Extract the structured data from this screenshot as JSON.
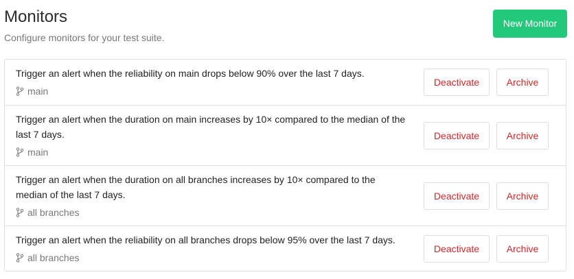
{
  "header": {
    "title": "Monitors",
    "subtitle": "Configure monitors for your test suite.",
    "new_monitor_label": "New Monitor"
  },
  "monitors": [
    {
      "text": "Trigger an alert when the reliability on main drops below 90% over the last 7 days.",
      "branch": "main",
      "deactivate_label": "Deactivate",
      "archive_label": "Archive"
    },
    {
      "text": "Trigger an alert when the duration on main increases by 10× compared to the median of the last 7 days.",
      "branch": "main",
      "deactivate_label": "Deactivate",
      "archive_label": "Archive"
    },
    {
      "text": "Trigger an alert when the duration on all branches increases by 10× compared to the median of the last 7 days.",
      "branch": "all branches",
      "deactivate_label": "Deactivate",
      "archive_label": "Archive"
    },
    {
      "text": "Trigger an alert when the reliability on all branches drops below 95% over the last 7 days.",
      "branch": "all branches",
      "deactivate_label": "Deactivate",
      "archive_label": "Archive"
    }
  ],
  "icons": {
    "branch": "git-branch-icon"
  },
  "colors": {
    "primary_button": "#22c97a",
    "danger_text": "#cc2a2a"
  }
}
